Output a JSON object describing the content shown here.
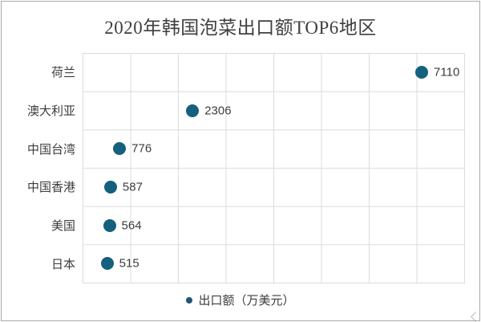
{
  "chart_data": {
    "type": "scatter",
    "title": "2020年韩国泡菜出口额TOP6地区",
    "categories": [
      "荷兰",
      "澳大利亚",
      "中国台湾",
      "中国香港",
      "美国",
      "日本"
    ],
    "values": [
      7110,
      2306,
      776,
      587,
      564,
      515
    ],
    "series_label": "出口额（万美元）",
    "xlabel": "",
    "ylabel": "",
    "xlim": [
      0,
      8000
    ],
    "x_gridline_step": 1000,
    "grid": true,
    "legend_position": "bottom",
    "colors": {
      "marker": "#15607E",
      "legend_marker": "#1F5578",
      "grid": "#DCDCDC",
      "title_text": "#3F3F3F",
      "label_text": "#3D3D3D",
      "background": "#FFFFFF",
      "frame_border": "#AAAAAA"
    }
  }
}
